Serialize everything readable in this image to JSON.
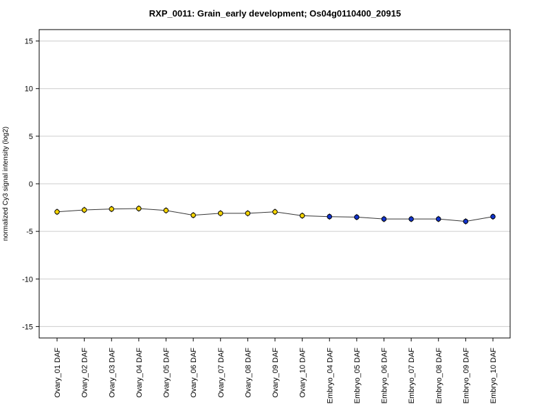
{
  "chart_data": {
    "type": "line",
    "title": "RXP_0011: Grain_early development; Os04g0110400_20915",
    "xlabel": "",
    "ylabel": "normalized Cy3 signal intensity (log2)",
    "ylim": [
      -16.2,
      16.2
    ],
    "yticks": [
      15,
      10,
      5,
      0,
      -5,
      -10,
      -15
    ],
    "grid": true,
    "categories": [
      "Ovary_01 DAF",
      "Ovary_02 DAF",
      "Ovary_03 DAF",
      "Ovary_04 DAF",
      "Ovary_05 DAF",
      "Ovary_06 DAF",
      "Ovary_07 DAF",
      "Ovary_08 DAF",
      "Ovary_09 DAF",
      "Ovary_10 DAF",
      "Embryo_04 DAF",
      "Embryo_05 DAF",
      "Embryo_06 DAF",
      "Embryo_07 DAF",
      "Embryo_08 DAF",
      "Embryo_09 DAF",
      "Embryo_10 DAF"
    ],
    "series": [
      {
        "values": [
          -2.95,
          -2.75,
          -2.65,
          -2.6,
          -2.8,
          -3.3,
          -3.1,
          -3.1,
          -2.95,
          -3.35,
          -3.45,
          -3.5,
          -3.7,
          -3.7,
          -3.7,
          -3.95,
          -3.45
        ],
        "colors": [
          "#f5d400",
          "#f5d400",
          "#f5d400",
          "#f5d400",
          "#f5d400",
          "#f5d400",
          "#f5d400",
          "#f5d400",
          "#f5d400",
          "#f5d400",
          "#1133cc",
          "#1133cc",
          "#1133cc",
          "#1133cc",
          "#1133cc",
          "#1133cc",
          "#1133cc"
        ]
      }
    ]
  }
}
